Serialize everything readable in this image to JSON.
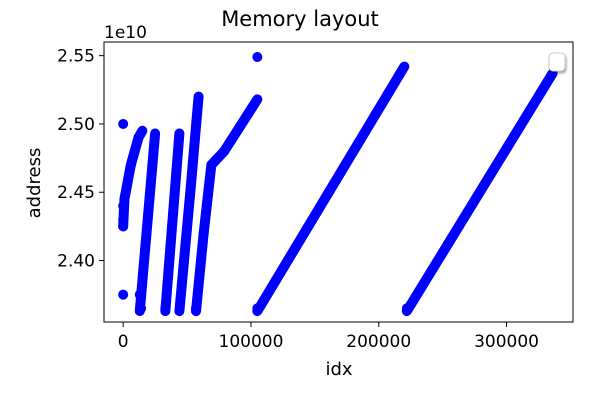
{
  "chart_data": {
    "type": "scatter",
    "title": "Memory layout",
    "xlabel": "idx",
    "ylabel": "address",
    "y_offset_label": "1e10",
    "y_scale_factor": 10000000000,
    "xlim": [
      -15000,
      352000
    ],
    "ylim": [
      2.355,
      2.56
    ],
    "x_ticks": [
      0,
      100000,
      200000,
      300000
    ],
    "x_tick_labels": [
      "0",
      "100000",
      "200000",
      "300000"
    ],
    "y_ticks": [
      2.4,
      2.45,
      2.5,
      2.55
    ],
    "y_tick_labels": [
      "2.40",
      "2.45",
      "2.50",
      "2.55"
    ],
    "grid": false,
    "legend": {
      "placement": "top-right",
      "entries": []
    },
    "marker_color": "#0000ff",
    "segments": [
      {
        "x": [
          0,
          1000
        ],
        "y": [
          2.425,
          2.445
        ]
      },
      {
        "x": [
          1000,
          3000
        ],
        "y": [
          2.445,
          2.455
        ]
      },
      {
        "x": [
          3000,
          6000
        ],
        "y": [
          2.455,
          2.47
        ]
      },
      {
        "x": [
          6000,
          9000
        ],
        "y": [
          2.47,
          2.48
        ]
      },
      {
        "x": [
          9000,
          12000
        ],
        "y": [
          2.48,
          2.49
        ]
      },
      {
        "x": [
          12000,
          15000
        ],
        "y": [
          2.49,
          2.495
        ]
      },
      {
        "x": [
          13000,
          25000
        ],
        "y": [
          2.363,
          2.493
        ]
      },
      {
        "x": [
          33000,
          44000
        ],
        "y": [
          2.363,
          2.493
        ]
      },
      {
        "x": [
          44000,
          53000
        ],
        "y": [
          2.363,
          2.455
        ]
      },
      {
        "x": [
          53000,
          59000
        ],
        "y": [
          2.455,
          2.52
        ]
      },
      {
        "x": [
          57000,
          63000
        ],
        "y": [
          2.363,
          2.42
        ]
      },
      {
        "x": [
          63000,
          69000
        ],
        "y": [
          2.42,
          2.47
        ]
      },
      {
        "x": [
          69000,
          79000
        ],
        "y": [
          2.47,
          2.48
        ]
      },
      {
        "x": [
          79000,
          105000
        ],
        "y": [
          2.48,
          2.518
        ]
      },
      {
        "x": [
          105000,
          220000
        ],
        "y": [
          2.363,
          2.542
        ]
      },
      {
        "x": [
          222000,
          336000
        ],
        "y": [
          2.363,
          2.537
        ]
      }
    ],
    "points": [
      {
        "x": 0,
        "y": 2.5
      },
      {
        "x": 0,
        "y": 2.375
      },
      {
        "x": 0,
        "y": 2.425
      },
      {
        "x": 0,
        "y": 2.43
      },
      {
        "x": 0,
        "y": 2.44
      },
      {
        "x": 105000,
        "y": 2.549
      },
      {
        "x": 13000,
        "y": 2.375
      },
      {
        "x": 14000,
        "y": 2.365
      },
      {
        "x": 33000,
        "y": 2.365
      },
      {
        "x": 57000,
        "y": 2.365
      },
      {
        "x": 105000,
        "y": 2.365
      },
      {
        "x": 222000,
        "y": 2.365
      }
    ]
  }
}
